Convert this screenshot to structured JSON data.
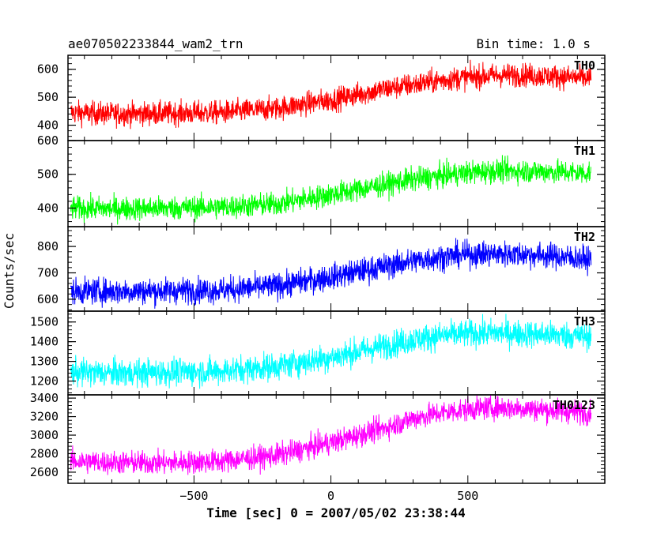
{
  "chart_data": {
    "type": "line",
    "title": "ae070502233844_wam2_trn",
    "subtitle": "Bin time: 1.0 s",
    "xlabel": "Time [sec] 0 = 2007/05/02 23:38:44",
    "ylabel": "Counts/sec",
    "xlim": [
      -960,
      1000
    ],
    "xticks": [
      -500,
      0,
      500
    ],
    "grid": false,
    "panels": [
      {
        "name": "TH0",
        "color": "#ff0000",
        "ylim": [
          345,
          650
        ],
        "yticks": [
          400,
          500,
          600
        ],
        "x": [
          -950,
          -800,
          -600,
          -400,
          -200,
          0,
          100,
          200,
          300,
          400,
          500,
          600,
          700,
          800,
          900,
          950
        ],
        "y": [
          445,
          440,
          442,
          445,
          460,
          490,
          510,
          530,
          545,
          560,
          572,
          578,
          580,
          575,
          570,
          568
        ],
        "noise": 30
      },
      {
        "name": "TH1",
        "color": "#00ff00",
        "ylim": [
          345,
          600
        ],
        "yticks": [
          400,
          500,
          600
        ],
        "x": [
          -950,
          -800,
          -600,
          -400,
          -200,
          0,
          100,
          200,
          300,
          400,
          500,
          600,
          700,
          800,
          900,
          950
        ],
        "y": [
          400,
          398,
          400,
          403,
          412,
          440,
          455,
          470,
          485,
          495,
          505,
          510,
          510,
          508,
          505,
          505
        ],
        "noise": 25
      },
      {
        "name": "TH2",
        "color": "#0000ff",
        "ylim": [
          555,
          875
        ],
        "yticks": [
          600,
          700,
          800
        ],
        "x": [
          -950,
          -800,
          -600,
          -400,
          -200,
          0,
          100,
          200,
          300,
          400,
          500,
          600,
          700,
          800,
          900,
          950
        ],
        "y": [
          630,
          630,
          632,
          635,
          650,
          685,
          705,
          725,
          745,
          760,
          770,
          772,
          770,
          765,
          755,
          750
        ],
        "noise": 35
      },
      {
        "name": "TH3",
        "color": "#00ffff",
        "ylim": [
          1130,
          1555
        ],
        "yticks": [
          1200,
          1300,
          1400,
          1500
        ],
        "x": [
          -950,
          -800,
          -600,
          -400,
          -200,
          0,
          100,
          200,
          300,
          400,
          500,
          600,
          700,
          800,
          900,
          950
        ],
        "y": [
          1245,
          1240,
          1245,
          1250,
          1275,
          1320,
          1350,
          1380,
          1410,
          1430,
          1440,
          1445,
          1440,
          1435,
          1430,
          1430
        ],
        "noise": 50
      },
      {
        "name": "TH0123",
        "color": "#ff00ff",
        "ylim": [
          2480,
          3435
        ],
        "yticks": [
          2600,
          2800,
          3000,
          3200,
          3400
        ],
        "x": [
          -950,
          -800,
          -600,
          -400,
          -200,
          0,
          100,
          200,
          300,
          400,
          500,
          600,
          700,
          800,
          900,
          950
        ],
        "y": [
          2720,
          2705,
          2700,
          2720,
          2780,
          2920,
          3000,
          3080,
          3180,
          3240,
          3280,
          3300,
          3290,
          3270,
          3250,
          3240
        ],
        "noise": 90
      }
    ]
  }
}
